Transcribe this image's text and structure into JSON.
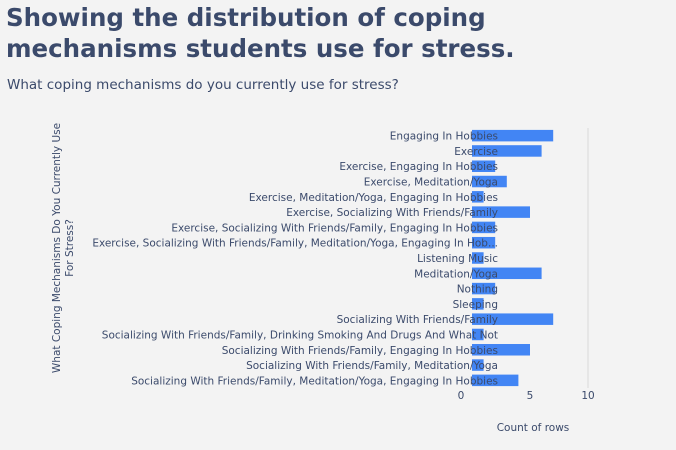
{
  "header": {
    "title": "Showing the distribution of coping mechanisms students use for stress.",
    "subtitle": "What coping mechanisms do you currently use for stress?"
  },
  "colors": {
    "bar": "#4285f4",
    "text": "#3b4a6b",
    "grid": "#d8d8d8",
    "background": "#f3f3f3"
  },
  "chart_data": {
    "type": "bar",
    "orientation": "horizontal",
    "xlabel": "Count of rows",
    "ylabel_lines": [
      "What Coping Mechanisms Do You Currently Use",
      "For Stress?"
    ],
    "xlim": [
      0,
      10.8
    ],
    "xticks": [
      0,
      5,
      10
    ],
    "grid": true,
    "categories": [
      "Engaging In Hobbies",
      "Exercise",
      "Exercise, Engaging In Hobbies",
      "Exercise, Meditation/Yoga",
      "Exercise, Meditation/Yoga, Engaging In Hobbies",
      "Exercise, Socializing With Friends/Family",
      "Exercise, Socializing With Friends/Family, Engaging In Hobbies",
      "Exercise, Socializing With Friends/Family, Meditation/Yoga, Engaging In Hob...",
      "Listening Music",
      "Meditation/Yoga",
      "Nothing",
      "Sleeping",
      "Socializing With Friends/Family",
      "Socializing With Friends/Family, Drinking Smoking And Drugs And What Not",
      "Socializing With Friends/Family, Engaging In Hobbies",
      "Socializing With Friends/Family, Meditation/Yoga",
      "Socializing With Friends/Family, Meditation/Yoga, Engaging In Hobbies"
    ],
    "values": [
      7,
      6,
      2,
      3,
      1,
      5,
      2,
      2,
      1,
      6,
      2,
      1,
      7,
      1,
      5,
      1,
      4
    ]
  }
}
